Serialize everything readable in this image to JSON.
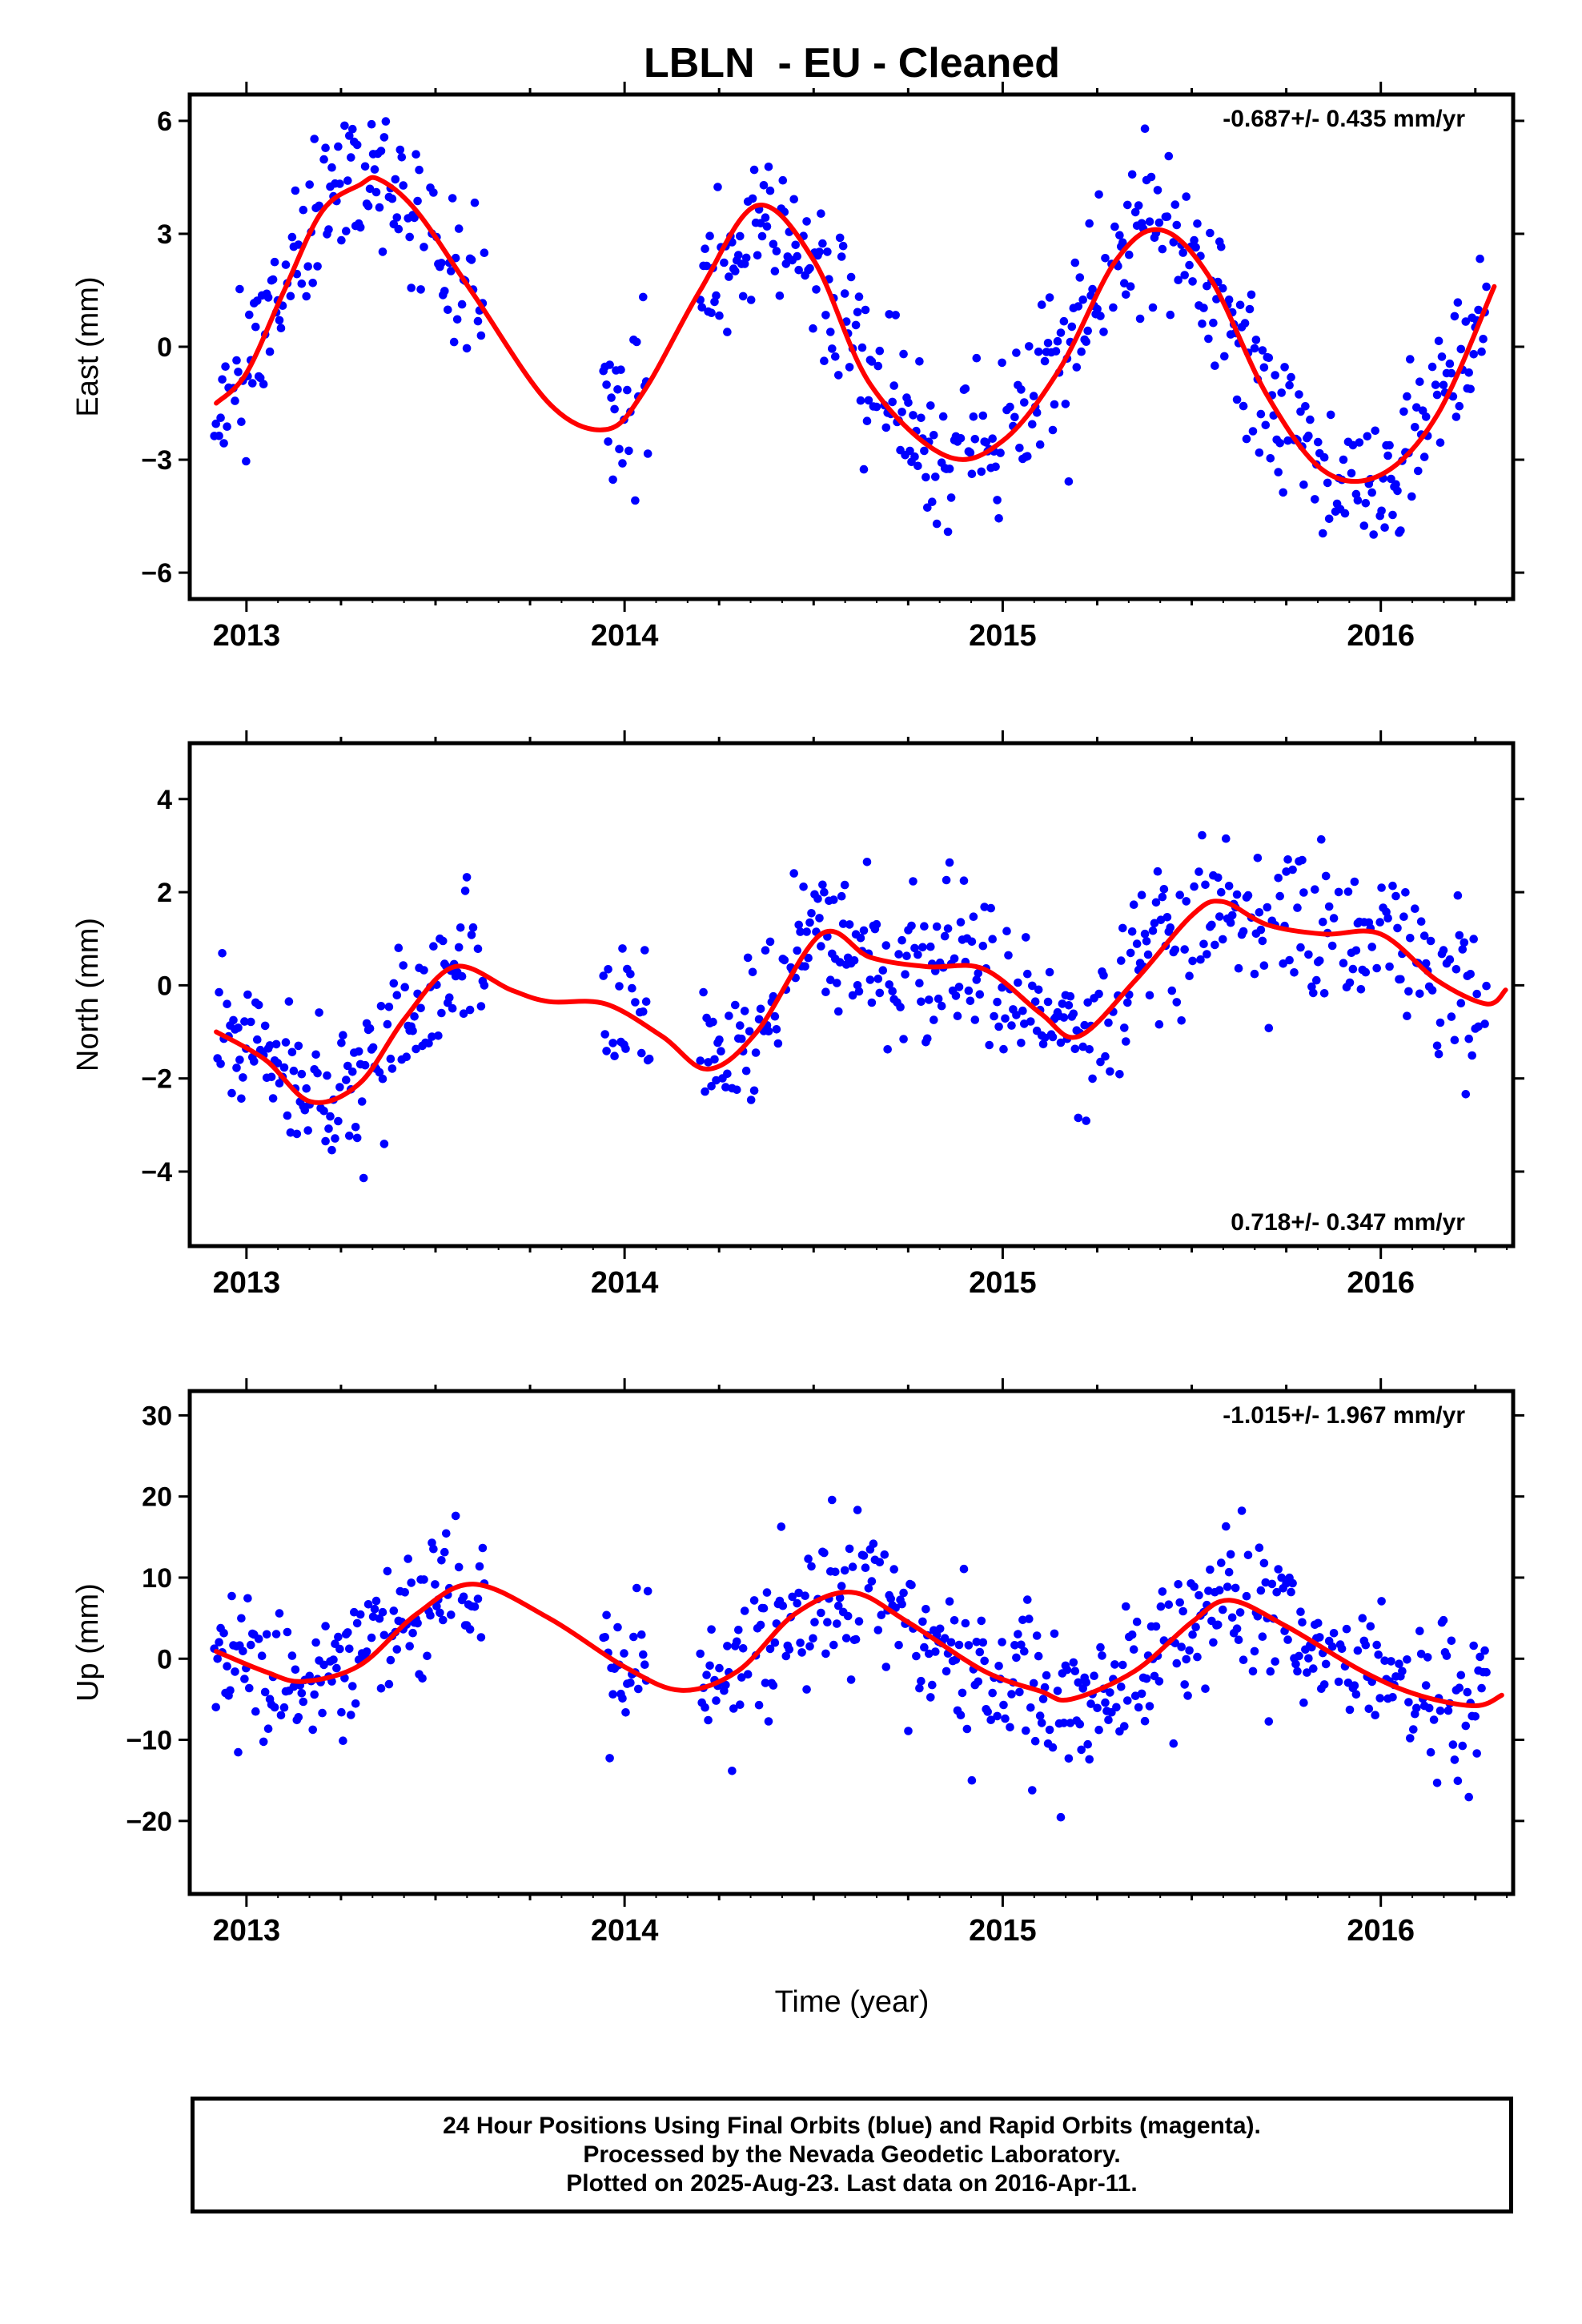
{
  "title": "LBLN  - EU - Cleaned",
  "x_axis": {
    "label": "Time (year)",
    "ticks": [
      "2013",
      "2014",
      "2015",
      "2016"
    ]
  },
  "footer": {
    "line1": "24 Hour Positions Using Final Orbits (blue) and Rapid Orbits (magenta).",
    "line2": "Processed by the Nevada Geodetic Laboratory.",
    "line3": "Plotted on 2025-Aug-23. Last data on 2016-Apr-11."
  },
  "colors": {
    "points": "#0000ff",
    "fit": "#ff0000",
    "frame": "#000000"
  },
  "chart_data": [
    {
      "type": "scatter",
      "ylabel": "East (mm)",
      "rate": "-0.687+/- 0.435 mm/yr",
      "rate_position": "top-right",
      "xlim": [
        2012.85,
        2016.35
      ],
      "ylim": [
        -6.7,
        6.7
      ],
      "yticks": [
        -6,
        -3,
        0,
        3,
        6
      ],
      "ytick_labels": [
        "−6",
        "−3",
        "0",
        "3",
        "6"
      ],
      "model": {
        "mean": 0.5,
        "trend": -0.687,
        "ref": 2014.6,
        "c1": -2.1,
        "s1": 2.85,
        "c2": 0.35,
        "s2": -0.35,
        "c3": 0.0,
        "s3": 0.0,
        "noise": 1.0,
        "seed": 11
      },
      "series": [
        {
          "values": [
            [
              2012.92,
              -1.5
            ],
            [
              2013.0,
              -0.7
            ],
            [
              2013.1,
              1.5
            ],
            [
              2013.2,
              3.6
            ],
            [
              2013.3,
              4.3
            ],
            [
              2013.35,
              4.45
            ],
            [
              2013.45,
              3.6
            ],
            [
              2013.6,
              1.4
            ],
            [
              2013.8,
              -1.5
            ],
            [
              2013.95,
              -2.2
            ],
            [
              2014.05,
              -1.2
            ],
            [
              2014.2,
              1.5
            ],
            [
              2014.35,
              3.75
            ],
            [
              2014.5,
              2.3
            ],
            [
              2014.65,
              -1.0
            ],
            [
              2014.85,
              -2.9
            ],
            [
              2015.0,
              -2.5
            ],
            [
              2015.15,
              -0.6
            ],
            [
              2015.3,
              2.3
            ],
            [
              2015.42,
              3.1
            ],
            [
              2015.55,
              1.8
            ],
            [
              2015.7,
              -1.3
            ],
            [
              2015.85,
              -3.3
            ],
            [
              2016.0,
              -3.4
            ],
            [
              2016.15,
              -1.8
            ],
            [
              2016.3,
              1.6
            ]
          ]
        }
      ]
    },
    {
      "type": "scatter",
      "ylabel": "North (mm)",
      "rate": "0.718+/- 0.347 mm/yr",
      "rate_position": "bottom-right",
      "xlim": [
        2012.85,
        2016.35
      ],
      "ylim": [
        -5.6,
        5.2
      ],
      "yticks": [
        -4,
        -2,
        0,
        2,
        4
      ],
      "ytick_labels": [
        "−4",
        "−2",
        "0",
        "2",
        "4"
      ],
      "model": {
        "mean": -0.2,
        "trend": 0.718,
        "ref": 2014.6,
        "c1": -0.95,
        "s1": 0.3,
        "c2": 0.25,
        "s2": -0.45,
        "c3": 0.15,
        "s3": 0.1,
        "noise": 0.8,
        "seed": 23
      },
      "series": [
        {
          "values": [
            [
              2012.92,
              -1.0
            ],
            [
              2013.05,
              -1.6
            ],
            [
              2013.17,
              -2.5
            ],
            [
              2013.3,
              -2.1
            ],
            [
              2013.42,
              -0.7
            ],
            [
              2013.55,
              0.4
            ],
            [
              2013.7,
              -0.1
            ],
            [
              2013.8,
              -0.35
            ],
            [
              2013.95,
              -0.4
            ],
            [
              2014.1,
              -1.1
            ],
            [
              2014.22,
              -1.8
            ],
            [
              2014.35,
              -1.0
            ],
            [
              2014.52,
              1.1
            ],
            [
              2014.65,
              0.6
            ],
            [
              2014.8,
              0.4
            ],
            [
              2014.95,
              0.35
            ],
            [
              2015.1,
              -0.6
            ],
            [
              2015.2,
              -1.1
            ],
            [
              2015.35,
              0.1
            ],
            [
              2015.5,
              1.5
            ],
            [
              2015.58,
              1.8
            ],
            [
              2015.7,
              1.3
            ],
            [
              2015.85,
              1.1
            ],
            [
              2016.0,
              1.1
            ],
            [
              2016.15,
              0.1
            ],
            [
              2016.28,
              -0.4
            ],
            [
              2016.33,
              -0.1
            ]
          ]
        }
      ]
    },
    {
      "type": "scatter",
      "ylabel": "Up (mm)",
      "rate": "-1.015+/- 1.967 mm/yr",
      "rate_position": "top-right",
      "xlim": [
        2012.85,
        2016.35
      ],
      "ylim": [
        -29.0,
        33.0
      ],
      "yticks": [
        -20,
        -10,
        0,
        10,
        20,
        30
      ],
      "ytick_labels": [
        "−20",
        "−10",
        "0",
        "10",
        "20",
        "30"
      ],
      "model": {
        "mean": 1.0,
        "trend": -1.015,
        "ref": 2014.6,
        "c1": -5.5,
        "s1": 3.2,
        "c2": 0.5,
        "s2": 0.3,
        "c3": 0.0,
        "s3": 0.0,
        "noise": 4.5,
        "seed": 37
      },
      "series": [
        {
          "values": [
            [
              2012.92,
              0.9
            ],
            [
              2013.05,
              -1.6
            ],
            [
              2013.15,
              -2.8
            ],
            [
              2013.3,
              -0.8
            ],
            [
              2013.45,
              5.5
            ],
            [
              2013.6,
              9.2
            ],
            [
              2013.8,
              5.0
            ],
            [
              2014.0,
              -1.0
            ],
            [
              2014.15,
              -3.9
            ],
            [
              2014.3,
              -1.5
            ],
            [
              2014.45,
              5.5
            ],
            [
              2014.6,
              8.2
            ],
            [
              2014.75,
              4.5
            ],
            [
              2014.95,
              -1.5
            ],
            [
              2015.1,
              -4.0
            ],
            [
              2015.18,
              -5.0
            ],
            [
              2015.35,
              -1.5
            ],
            [
              2015.5,
              4.5
            ],
            [
              2015.6,
              7.2
            ],
            [
              2015.75,
              4.0
            ],
            [
              2015.95,
              -1.5
            ],
            [
              2016.1,
              -4.5
            ],
            [
              2016.25,
              -5.8
            ],
            [
              2016.32,
              -4.5
            ]
          ]
        }
      ]
    }
  ]
}
